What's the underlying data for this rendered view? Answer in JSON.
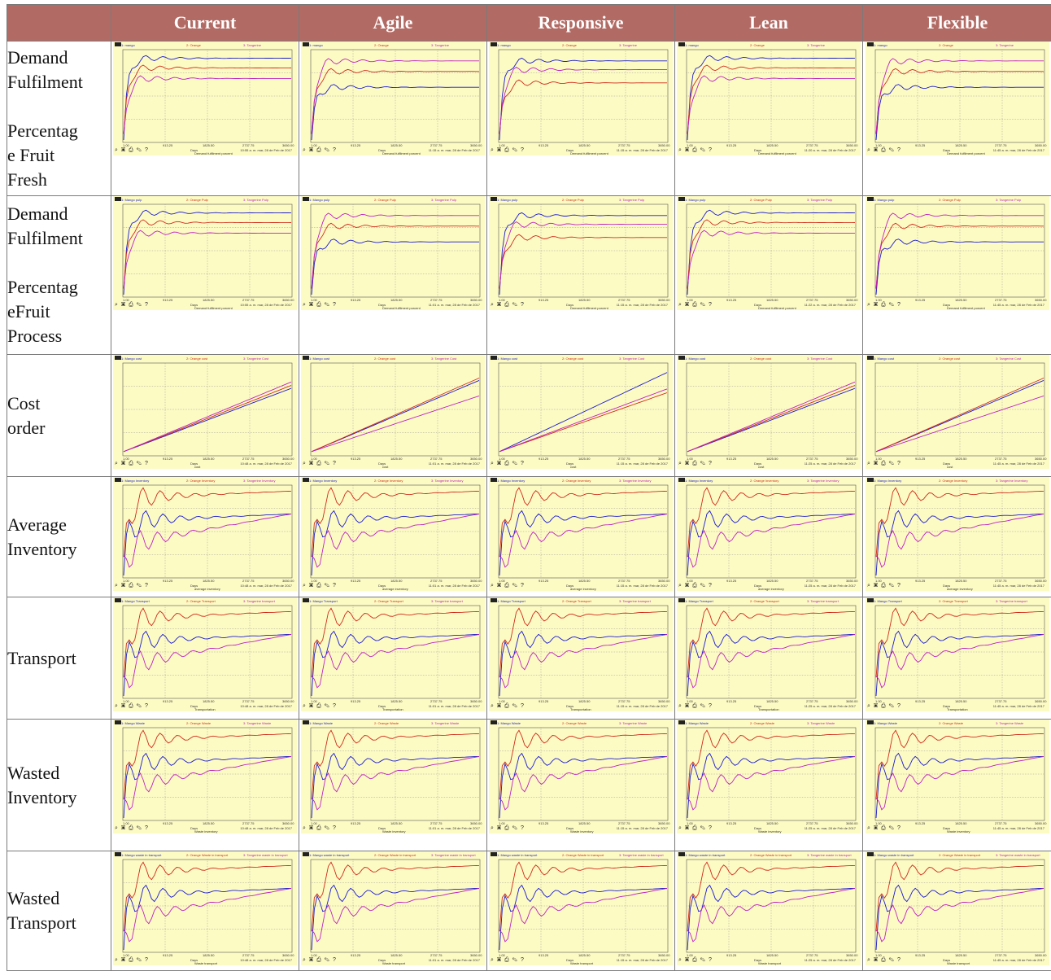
{
  "header": {
    "columns": [
      "Current",
      "Agile",
      "Responsive",
      "Lean",
      "Flexible"
    ]
  },
  "rows": [
    {
      "label": "Demand\nFulfilment\n\nPercentag\ne Fruit\nFresh",
      "legend": [
        "1: mango",
        "2: Orange",
        "3: Tangerine"
      ],
      "xlabel": "Days",
      "plot_label": "Demand fulfilment porcent",
      "stamps": [
        "10:55 a. m.  mar, 28 de Feb de 2017",
        "11:15 a. m.  mar, 28 de Feb de 2017",
        "11:15 a. m.  mar, 28 de Feb de 2017",
        "11:20 a. m.  mar, 28 de Feb de 2017",
        "11:45 a. m.  mar, 28 de Feb de 2017"
      ]
    },
    {
      "label": "Demand\nFulfilment\n\nPercentag\neFruit\nProcess",
      "legend": [
        "1: Mango pulp",
        "2: Orange Pulp",
        "3: Tangerine Pulp"
      ],
      "xlabel": "Days",
      "plot_label": "Demand fulfilment porcent",
      "stamps": [
        "10:55 a. m.  mar, 28 de Feb de 2017",
        "11:01 a. m.  mar, 28 de Feb de 2017",
        "11:15 a. m.  mar, 28 de Feb de 2017",
        "11:22 a. m.  mar, 28 de Feb de 2017",
        "11:45 a. m.  mar, 28 de Feb de 2017"
      ]
    },
    {
      "label": "Cost\norder",
      "legend": [
        "1: Mango cost",
        "2: Orange cost",
        "3: Tangerine Cost"
      ],
      "xlabel": "Days",
      "plot_label": "cost",
      "stamps": [
        "10:48 a. m.  mar, 28 de Feb de 2017",
        "11:01 a. m.  mar, 28 de Feb de 2017",
        "11:15 a. m.  mar, 28 de Feb de 2017",
        "11:25 a. m.  mar, 28 de Feb de 2017",
        "11:45 a. m.  mar, 28 de Feb de 2017"
      ]
    },
    {
      "label": "Average\nInventory",
      "legend": [
        "1: Mango Inventory",
        "2: Orange Inventory",
        "3: Tangerine Inventory"
      ],
      "xlabel": "Days",
      "plot_label": "average inventory",
      "stamps": [
        "10:48 a. m.  mar, 28 de Feb de 2017",
        "11:01 a. m.  mar, 28 de Feb de 2017",
        "11:15 a. m.  mar, 28 de Feb de 2017",
        "11:25 a. m.  mar, 28 de Feb de 2017",
        "11:45 a. m.  mar, 28 de Feb de 2017"
      ]
    },
    {
      "label": "Transport",
      "legend": [
        "1: Mango Transport",
        "2: Orange Transport",
        "3: Tangerine transport"
      ],
      "xlabel": "Days",
      "plot_label": "Transportation",
      "stamps": [
        "10:48 a. m.  mar, 28 de Feb de 2017",
        "11:01 a. m.  mar, 28 de Feb de 2017",
        "11:15 a. m.  mar, 28 de Feb de 2017",
        "11:25 a. m.  mar, 28 de Feb de 2017",
        "11:45 a. m.  mar, 28 de Feb de 2017"
      ]
    },
    {
      "label": "Wasted\nInventory",
      "legend": [
        "1: Mango Waste",
        "2: Orange Waste",
        "3: Tangerine Waste"
      ],
      "xlabel": "Days",
      "plot_label": "Waste inventory",
      "stamps": [
        "10:48 a. m.  mar, 28 de Feb de 2017",
        "11:01 a. m.  mar, 28 de Feb de 2017",
        "11:15 a. m.  mar, 28 de Feb de 2017",
        "11:25 a. m.  mar, 28 de Feb de 2017",
        "11:45 a. m.  mar, 28 de Feb de 2017"
      ]
    },
    {
      "label": "Wasted\nTransport",
      "legend": [
        "1: Mango waste in transport",
        "2: Orange Waste in transport",
        "3: Tangerine waste in transport"
      ],
      "xlabel": "Days",
      "plot_label": "Waste transport",
      "stamps": [
        "10:48 a. m.  mar, 28 de Feb de 2017",
        "11:01 a. m.  mar, 28 de Feb de 2017",
        "11:15 a. m.  mar, 28 de Feb de 2017",
        "11:25 a. m.  mar, 28 de Feb de 2017",
        "11:45 a. m.  mar, 28 de Feb de 2017"
      ]
    }
  ],
  "x_ticks": [
    "1.00",
    "913.25",
    "1825.50",
    "2737.75",
    "3650.00"
  ],
  "toolbar_glyphs": "⌕ ▣ ⎙ ✎   ?",
  "colors": {
    "header_bg": "#b26a64",
    "plot_bg": "#fdfbc4",
    "mango": "#1a1ad0",
    "orange": "#d02a1a",
    "tangerine": "#c020c0"
  }
}
